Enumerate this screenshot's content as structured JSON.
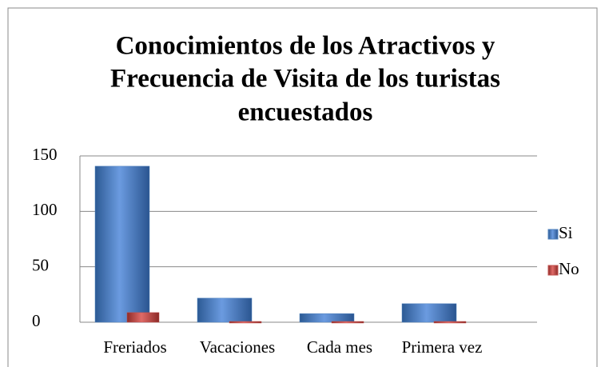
{
  "chart_data": {
    "type": "bar",
    "title": [
      "Conocimientos de los Atractivos y",
      "Frecuencia de Visita de los turistas",
      "encuestados"
    ],
    "categories": [
      "Freriados",
      "Vacaciones",
      "Cada mes",
      "Primera vez"
    ],
    "series": [
      {
        "name": "Si",
        "color": "#4f81bd",
        "values": [
          140,
          21,
          7,
          16
        ]
      },
      {
        "name": "No",
        "color": "#c0504d",
        "values": [
          8,
          0,
          0,
          0
        ]
      }
    ],
    "ylim": [
      0,
      150
    ],
    "yticks": [
      0,
      50,
      100,
      150
    ],
    "grid": true,
    "legend": "right"
  }
}
